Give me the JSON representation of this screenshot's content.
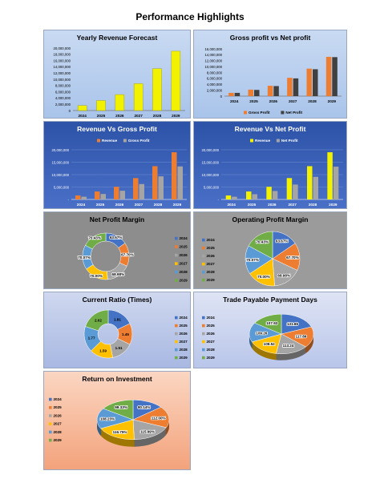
{
  "page_title": "Performance Highlights",
  "years": [
    "2024",
    "2025",
    "2026",
    "2027",
    "2028",
    "2029"
  ],
  "colors": {
    "yellow": "#f2f200",
    "orange": "#ed7d31",
    "grey": "#a5a5a5",
    "slices": [
      "#4472c4",
      "#ed7d31",
      "#a5a5a5",
      "#ffc000",
      "#5b9bd5",
      "#70ad47"
    ]
  },
  "chart_data": [
    {
      "id": "yearly-revenue",
      "type": "bar",
      "title": "Yearly Revenue Forecast",
      "categories": [
        "2024",
        "2025",
        "2026",
        "2027",
        "2028",
        "2029"
      ],
      "series": [
        {
          "values": [
            1600000,
            3200000,
            5100000,
            8600000,
            13400000,
            19000000
          ]
        }
      ],
      "yticks": [
        "0",
        "2,000,000",
        "4,000,000",
        "6,000,000",
        "8,000,000",
        "10,000,000",
        "12,000,000",
        "14,000,000",
        "16,000,000",
        "18,000,000",
        "20,000,000"
      ],
      "ylim": [
        0,
        20000000
      ]
    },
    {
      "id": "gross-vs-net",
      "type": "bar",
      "title": "Gross profit vs Net profit",
      "categories": [
        "2024",
        "2025",
        "2026",
        "2027",
        "2028",
        "2029"
      ],
      "series": [
        {
          "name": "Gross Profit",
          "values": [
            1100000,
            2200000,
            3500000,
            6200000,
            9300000,
            13300000
          ]
        },
        {
          "name": "Net Profit",
          "values": [
            1100000,
            2100000,
            3400000,
            6000000,
            9100000,
            13200000
          ]
        }
      ],
      "yticks": [
        "0",
        "2,000,000",
        "4,000,000",
        "6,000,000",
        "8,000,000",
        "10,000,000",
        "12,000,000",
        "14,000,000",
        "16,000,000"
      ],
      "ylim": [
        0,
        16000000
      ],
      "legend": "bottom"
    },
    {
      "id": "revenue-vs-gross",
      "type": "bar",
      "title": "Revenue Vs Gross Profit",
      "categories": [
        "2024",
        "2025",
        "2026",
        "2027",
        "2028",
        "2029"
      ],
      "series": [
        {
          "name": "Revenue",
          "values": [
            1600000,
            3200000,
            5100000,
            8600000,
            13400000,
            19000000
          ]
        },
        {
          "name": "Gross Profit",
          "values": [
            1100000,
            2200000,
            3500000,
            6200000,
            9300000,
            13300000
          ]
        }
      ],
      "yticks": [
        "-",
        "5,000,000",
        "10,000,000",
        "15,000,000",
        "20,000,000"
      ],
      "ylim": [
        0,
        20000000
      ],
      "legend": "top"
    },
    {
      "id": "revenue-vs-net",
      "type": "bar",
      "title": "Revenue Vs Net Profit",
      "categories": [
        "2024",
        "2025",
        "2026",
        "2027",
        "2028",
        "2029"
      ],
      "series": [
        {
          "name": "Revenue",
          "values": [
            1600000,
            3200000,
            5100000,
            8600000,
            13400000,
            19000000
          ]
        },
        {
          "name": "Net Profit",
          "values": [
            1100000,
            2100000,
            3400000,
            6000000,
            9100000,
            13200000
          ]
        }
      ],
      "yticks": [
        "-",
        "5,000,000",
        "10,000,000",
        "15,000,000",
        "20,000,000"
      ],
      "ylim": [
        0,
        20000000
      ],
      "legend": "top"
    },
    {
      "id": "net-profit-margin",
      "type": "pie",
      "variant": "doughnut",
      "title": "Net Profit Margin",
      "categories": [
        "2024",
        "2025",
        "2026",
        "2027",
        "2028",
        "2029"
      ],
      "values": [
        63.67,
        67.7,
        68.98,
        70.0,
        70.07,
        70.43
      ],
      "labels": [
        "63.67%",
        "67.70%",
        "68.98%",
        "70.00%",
        "70.07%",
        "70.43%"
      ],
      "legend": "right"
    },
    {
      "id": "operating-profit-margin",
      "type": "pie",
      "title": "Operating Profit Margin",
      "categories": [
        "2024",
        "2025",
        "2026",
        "2027",
        "2028",
        "2029"
      ],
      "values": [
        63.67,
        67.7,
        68.98,
        70.0,
        70.07,
        70.43
      ],
      "labels": [
        "63.67%",
        "67.70%",
        "68.98%",
        "70.00%",
        "70.07%",
        "70.43%"
      ],
      "legend": "left"
    },
    {
      "id": "current-ratio",
      "type": "pie",
      "variant": "doughnut",
      "title": "Current Ratio (Times)",
      "categories": [
        "2024",
        "2025",
        "2026",
        "2027",
        "2028",
        "2029"
      ],
      "values": [
        1.81,
        1.45,
        1.51,
        1.59,
        1.77,
        2.02
      ],
      "labels": [
        "1.81",
        "1.45",
        "1.51",
        "1.59",
        "1.77",
        "2.02"
      ],
      "legend": "right"
    },
    {
      "id": "trade-payable-days",
      "type": "pie",
      "variant": "3d",
      "title": "Trade Payable Payment Days",
      "categories": [
        "2024",
        "2025",
        "2026",
        "2027",
        "2028",
        "2029"
      ],
      "values": [
        131.86,
        117.89,
        113.24,
        109.52,
        109.26,
        107.93
      ],
      "labels": [
        "131.86",
        "117.89",
        "113.24",
        "109.52",
        "109.26",
        "107.93"
      ],
      "legend": "left"
    },
    {
      "id": "return-on-investment",
      "type": "pie",
      "variant": "3d",
      "title": "Return on Investment",
      "categories": [
        "2024",
        "2025",
        "2026",
        "2027",
        "2028",
        "2029"
      ],
      "values": [
        90.14,
        112.0,
        115.49,
        116.75,
        108.23,
        99.33
      ],
      "labels": [
        "90.14%",
        "112.00%",
        "115.49%",
        "116.75%",
        "108.23%",
        "99.33%"
      ],
      "legend": "left"
    }
  ]
}
